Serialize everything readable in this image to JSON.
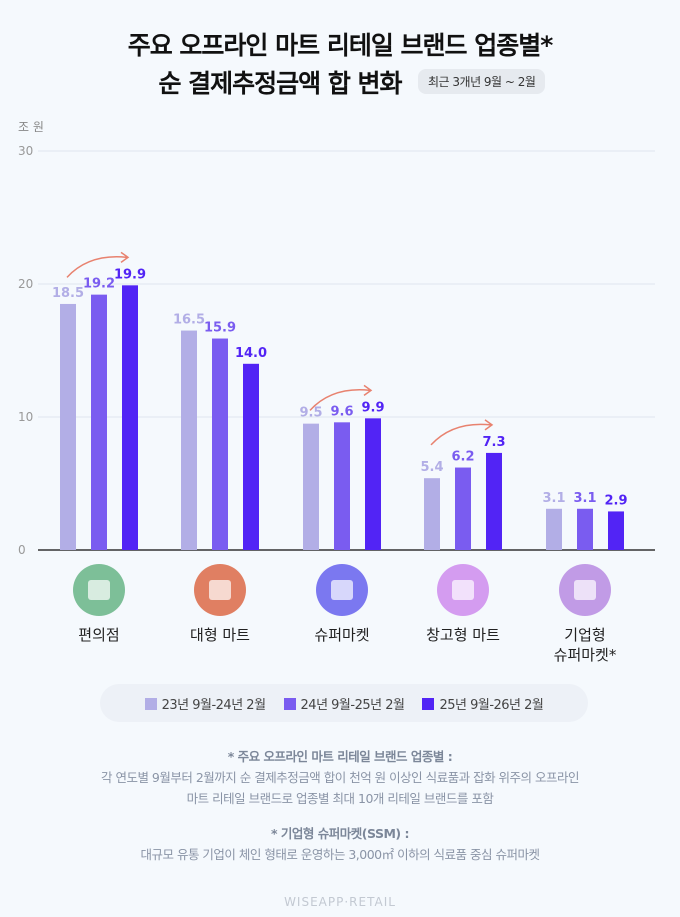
{
  "title_line1": "주요 오프라인 마트 리테일 브랜드 업종별*",
  "title_line2": "순 결제추정금액 합 변화",
  "period_badge": "최근 3개년 9월 ~ 2월",
  "watermark": "WISEAPP·RETAIL",
  "chart_data": {
    "type": "bar",
    "ylabel": "조 원",
    "ylim": [
      0,
      30
    ],
    "yticks": [
      0,
      10,
      20,
      30
    ],
    "grid": true,
    "legend_position": "bottom",
    "categories": [
      "편의점",
      "대형 마트",
      "슈퍼마켓",
      "창고형 마트",
      "기업형\n슈퍼마켓*"
    ],
    "category_icons": [
      "convenience-store-24-icon",
      "shopping-cart-icon",
      "supermarket-store-icon",
      "warehouse-store-icon",
      "shopping-bag-icon"
    ],
    "category_icon_colors": [
      "#7dbf98",
      "#e07f62",
      "#7b78f0",
      "#d49cf0",
      "#c19be6"
    ],
    "series": [
      {
        "name": "23년 9월-24년 2월",
        "color": "#b2aee6",
        "values": [
          18.5,
          16.5,
          9.5,
          5.4,
          3.1
        ]
      },
      {
        "name": "24년 9월-25년 2월",
        "color": "#7a5cf0",
        "values": [
          19.2,
          15.9,
          9.6,
          6.2,
          3.1
        ]
      },
      {
        "name": "25년 9월-26년 2월",
        "color": "#5224f5",
        "values": [
          19.9,
          14.0,
          9.9,
          7.3,
          2.9
        ]
      }
    ],
    "increase_arrows": [
      true,
      false,
      true,
      true,
      false
    ]
  },
  "notes": {
    "note1_title": "* 주요 오프라인 마트 리테일 브랜드 업종별 :",
    "note1_line1": "각 연도별 9월부터 2월까지 순 결제추정금액 합이 천억 원 이상인 식료품과 잡화 위주의 오프라인",
    "note1_line2": "마트 리테일 브랜드로 업종별 최대 10개 리테일 브랜드를 포함",
    "note2_title": "* 기업형 슈퍼마켓(SSM) :",
    "note2_line1": "대규모 유통 기업이 체인 형태로 운영하는 3,000㎡ 이하의 식료품 중심 슈퍼마켓"
  }
}
